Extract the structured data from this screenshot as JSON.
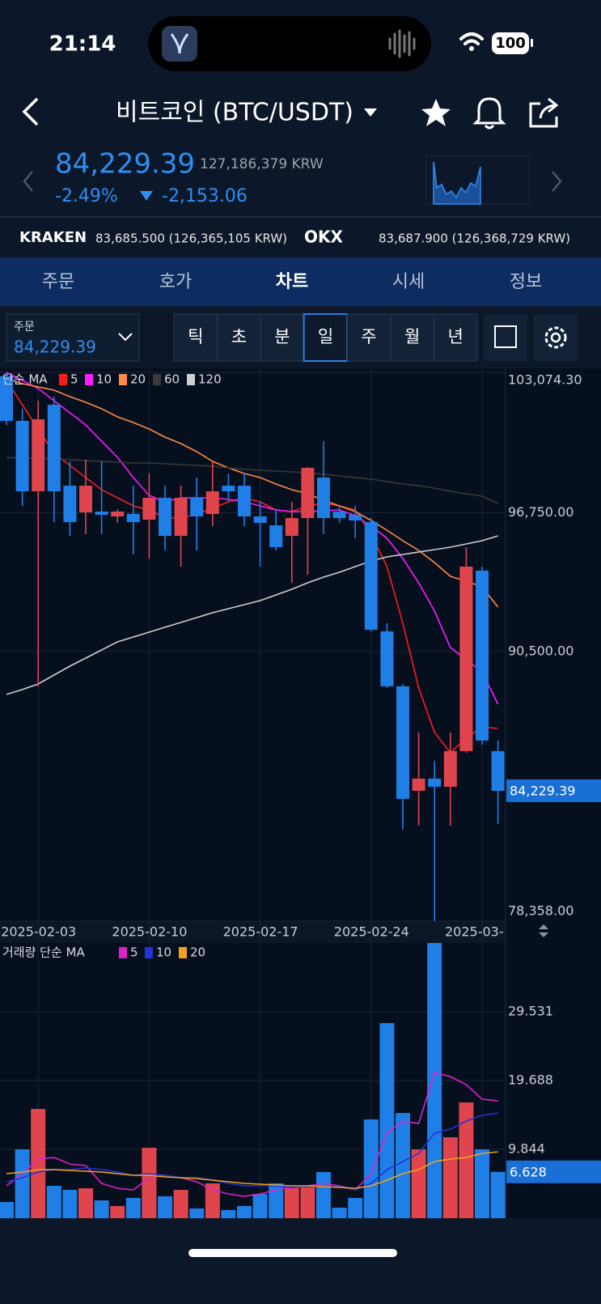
{
  "status_bar": {
    "time": "21:14",
    "battery": "100"
  },
  "header": {
    "title": "비트코인 (BTC/USDT)"
  },
  "price": {
    "last": "84,229.39",
    "krw": "127,186,379 KRW",
    "change_pct": "-2.49%",
    "change": "-2,153.06"
  },
  "exchanges": [
    {
      "name": "KRAKEN",
      "price": "83,685.500 (126,365,105 KRW)"
    },
    {
      "name": "OKX",
      "price": "83,687.900 (126,368,729 KRW)"
    }
  ],
  "tabs": [
    "주문",
    "호가",
    "차트",
    "시세",
    "정보"
  ],
  "order": {
    "label": "주문",
    "price": "84,229.39"
  },
  "periods": [
    "틱",
    "초",
    "분",
    "일",
    "주",
    "월",
    "년"
  ],
  "chart_data": [
    {
      "type": "candlestick",
      "legend_title": "단순 MA",
      "categories": [
        null,
        null,
        "2025-02-03",
        null,
        null,
        null,
        null,
        null,
        null,
        "2025-02-10",
        null,
        null,
        null,
        null,
        null,
        null,
        "2025-02-17",
        null,
        null,
        null,
        null,
        null,
        null,
        "2025-02-24",
        null,
        null,
        null,
        null,
        null,
        null,
        "2025-03-",
        null
      ],
      "open": [
        102900,
        100887,
        97716,
        101616,
        97971,
        96768,
        96805,
        96586,
        96700,
        96440,
        97425,
        95712,
        97425,
        96695,
        97971,
        97971,
        96586,
        96185,
        95712,
        96513,
        98336,
        96805,
        96659,
        96331,
        91410,
        88932,
        84230,
        84777,
        84412,
        86016,
        94144,
        86016
      ],
      "high": [
        103074,
        101434,
        101798,
        101981,
        99065,
        99138,
        99065,
        96900,
        97971,
        98518,
        97971,
        97971,
        98336,
        99065,
        98518,
        98518,
        97242,
        96878,
        97242,
        98810,
        99976,
        97060,
        97060,
        96513,
        91775,
        89041,
        86854,
        85579,
        86854,
        95201,
        94326,
        86490
      ],
      "low": [
        100700,
        97060,
        88932,
        96331,
        95712,
        95785,
        95785,
        96300,
        94873,
        94691,
        95056,
        94326,
        95056,
        96149,
        97242,
        96149,
        94326,
        95056,
        93597,
        93962,
        95785,
        96300,
        95602,
        91410,
        88859,
        82480,
        82662,
        78361,
        82662,
        85943,
        86308,
        82735
      ],
      "close": [
        100887,
        97716,
        100960,
        97716,
        96331,
        97971,
        96659,
        96805,
        96331,
        97425,
        95712,
        97425,
        96586,
        97716,
        97716,
        96586,
        96295,
        95201,
        96513,
        98773,
        96513,
        96513,
        96404,
        91483,
        88932,
        83865,
        84777,
        84412,
        86016,
        94326,
        86490,
        84229.39
      ],
      "up_color": "#e0454d",
      "down_color": "#1f7fe6",
      "series": [
        {
          "name": "5",
          "color": "#ff1a1a",
          "values": [
            102710,
            101616,
            100523,
            99429,
            98882,
            98336,
            97789,
            97425,
            97060,
            96878,
            96513,
            96513,
            96695,
            96951,
            97242,
            97425,
            97242,
            96878,
            96805,
            97060,
            97169,
            97060,
            96878,
            95785,
            94326,
            91775,
            88859,
            86854,
            85943,
            86599,
            87109,
            87036
          ]
        },
        {
          "name": "10",
          "color": "#ff1aff",
          "values": [
            103074,
            102710,
            102345,
            101798,
            101252,
            100705,
            99976,
            99247,
            98336,
            97534,
            97242,
            97425,
            97425,
            97425,
            97352,
            97242,
            97060,
            96878,
            96805,
            96805,
            96841,
            96878,
            96623,
            96149,
            95602,
            94691,
            93597,
            92321,
            90681,
            90134,
            89587,
            88129
          ]
        },
        {
          "name": "20",
          "color": "#ff8a45",
          "values": [
            102783,
            102564,
            102418,
            102272,
            101981,
            101726,
            101434,
            101070,
            100815,
            100523,
            100158,
            99867,
            99502,
            99065,
            98773,
            98518,
            98336,
            98044,
            97789,
            97607,
            97315,
            97060,
            96805,
            96404,
            95967,
            95493,
            95056,
            94509,
            93889,
            93670,
            93415,
            92504
          ]
        },
        {
          "name": "60",
          "color": "#3a3a3a",
          "values": [
            99247,
            99211,
            99211,
            99174,
            99138,
            99101,
            99065,
            99028,
            98992,
            98992,
            98955,
            98919,
            98882,
            98846,
            98773,
            98700,
            98664,
            98627,
            98591,
            98554,
            98481,
            98408,
            98336,
            98263,
            98153,
            98044,
            97971,
            97862,
            97716,
            97607,
            97498,
            97169
          ]
        },
        {
          "name": "120",
          "color": "#cfcfcf",
          "values": [
            88568,
            88786,
            89041,
            89442,
            89843,
            90207,
            90572,
            90936,
            91155,
            91374,
            91593,
            91811,
            92030,
            92249,
            92431,
            92613,
            92795,
            93050,
            93305,
            93597,
            93852,
            94071,
            94326,
            94581,
            94763,
            94873,
            94982,
            95092,
            95201,
            95347,
            95493,
            95712
          ]
        }
      ],
      "ylim": [
        78358,
        103074.3
      ],
      "yticks": [
        {
          "value": 78358,
          "label": "78,358.00"
        },
        {
          "value": 90500,
          "label": "90,500.00"
        },
        {
          "value": 96750,
          "label": "96,750.00"
        },
        {
          "value": 103074.3,
          "label": "103,074.30"
        }
      ],
      "last_price": {
        "value": 84229.39,
        "label": "84,229.39"
      },
      "grid": true
    },
    {
      "type": "bar",
      "legend_title": "거래량 단순 MA",
      "values": [
        2.32,
        9.84,
        15.63,
        4.63,
        4.05,
        4.28,
        2.55,
        1.74,
        2.9,
        10.08,
        3.13,
        4.05,
        1.39,
        4.98,
        1.16,
        1.74,
        3.47,
        4.98,
        4.4,
        4.4,
        6.6,
        1.51,
        2.9,
        14.13,
        27.91,
        15.06,
        9.84,
        39.375,
        11.58,
        16.56,
        9.84,
        6.628
      ],
      "series": [
        {
          "name": "5",
          "color": "#e020c8",
          "values": [
            4.63,
            6.37,
            8.45,
            8.69,
            7.76,
            7.53,
            4.98,
            4.28,
            4.05,
            5.79,
            6.14,
            5.79,
            5.21,
            4.05,
            3.47,
            3.13,
            3.47,
            4.05,
            4.28,
            4.63,
            4.98,
            4.63,
            4.05,
            6.37,
            12.16,
            13.9,
            13.55,
            20.85,
            20.27,
            19.11,
            17.02,
            16.79
          ]
        },
        {
          "name": "10",
          "color": "#2233d8",
          "values": [
            5.21,
            5.79,
            6.6,
            6.95,
            6.95,
            7.18,
            6.95,
            6.6,
            6.14,
            6.37,
            6.14,
            5.79,
            5.79,
            5.44,
            4.98,
            4.63,
            4.63,
            4.63,
            4.4,
            4.52,
            4.52,
            4.52,
            4.05,
            4.98,
            6.95,
            8.11,
            9.26,
            12.16,
            12.74,
            13.9,
            14.71,
            15.06
          ]
        },
        {
          "name": "20",
          "color": "#f2a21e",
          "values": [
            6.37,
            6.6,
            6.95,
            6.95,
            6.83,
            6.72,
            6.6,
            6.37,
            6.14,
            6.14,
            5.91,
            5.79,
            5.67,
            5.44,
            5.21,
            4.98,
            4.86,
            4.75,
            4.63,
            4.63,
            4.52,
            4.4,
            4.28,
            4.63,
            5.44,
            6.37,
            6.95,
            8.11,
            8.45,
            8.69,
            9.26,
            9.5
          ]
        }
      ],
      "ylim": [
        0,
        39.375
      ],
      "yticks": [
        9.844,
        19.688,
        29.531
      ],
      "grid": true
    }
  ]
}
